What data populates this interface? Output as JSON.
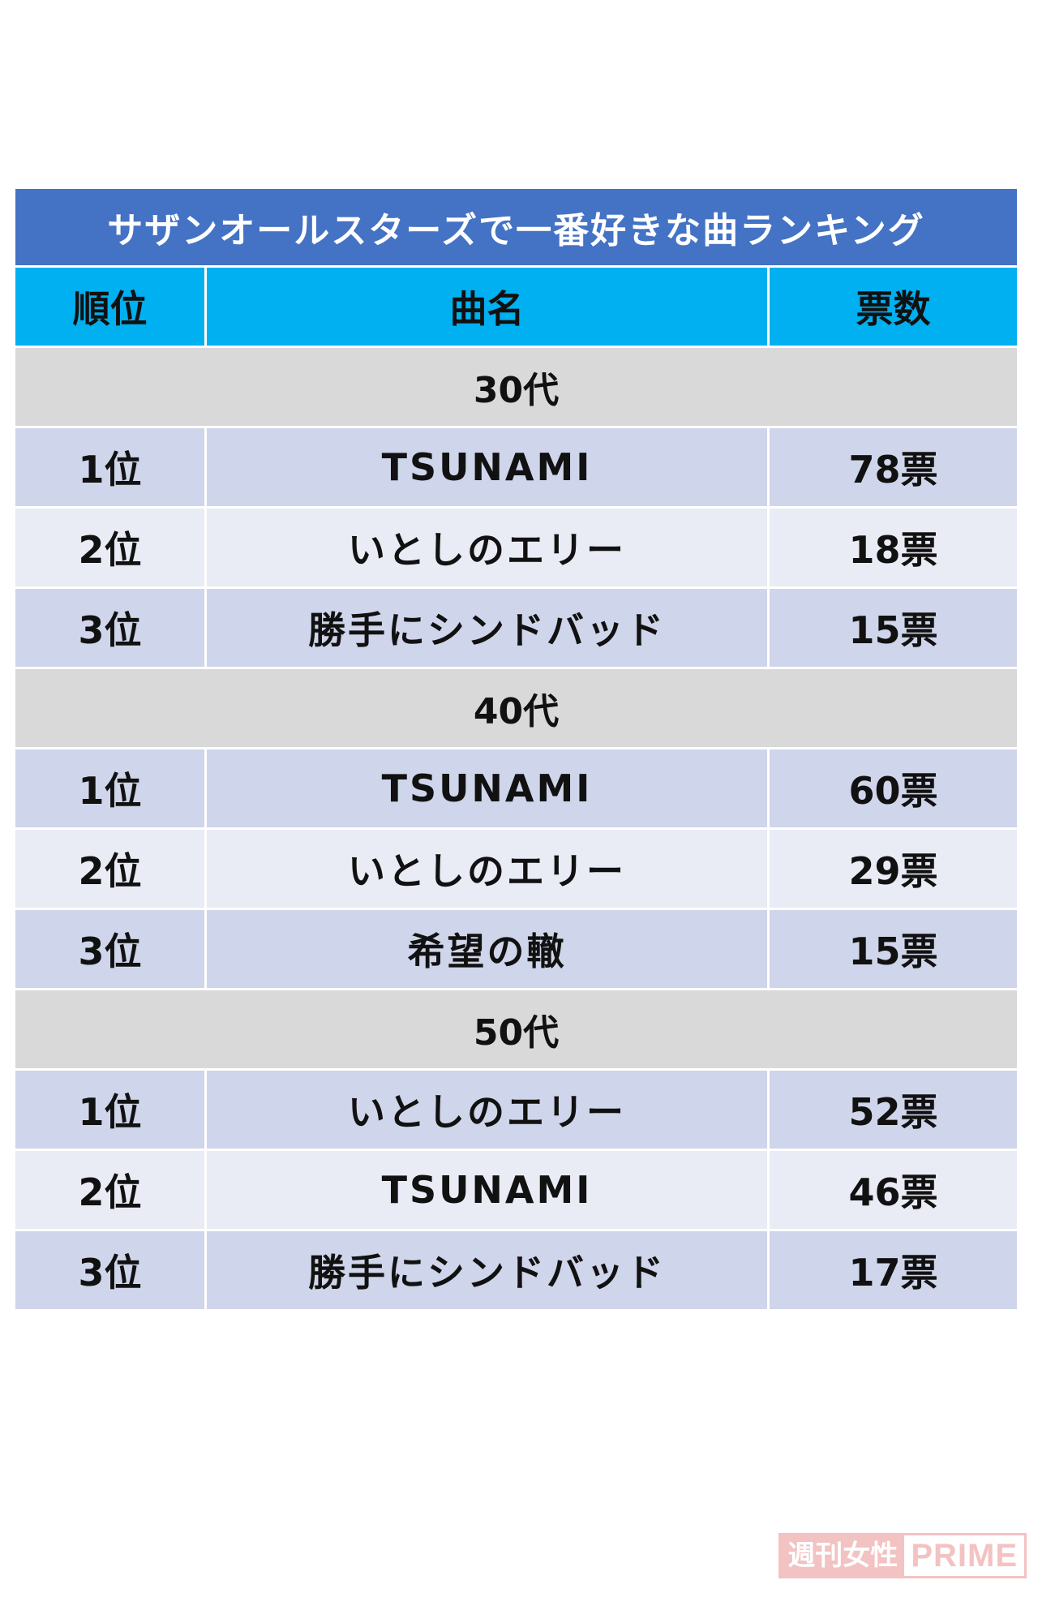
{
  "table": {
    "title": "サザンオールスターズで一番好きな曲ランキング",
    "headers": {
      "rank": "順位",
      "song": "曲名",
      "votes": "票数"
    },
    "groups": [
      {
        "age": "30代",
        "rows": [
          {
            "rank": "1位",
            "song": "TSUNAMI",
            "votes": "78票"
          },
          {
            "rank": "2位",
            "song": "いとしのエリー",
            "votes": "18票"
          },
          {
            "rank": "3位",
            "song": "勝手にシンドバッド",
            "votes": "15票"
          }
        ]
      },
      {
        "age": "40代",
        "rows": [
          {
            "rank": "1位",
            "song": "TSUNAMI",
            "votes": "60票"
          },
          {
            "rank": "2位",
            "song": "いとしのエリー",
            "votes": "29票"
          },
          {
            "rank": "3位",
            "song": "希望の轍",
            "votes": "15票"
          }
        ]
      },
      {
        "age": "50代",
        "rows": [
          {
            "rank": "1位",
            "song": "いとしのエリー",
            "votes": "52票"
          },
          {
            "rank": "2位",
            "song": "TSUNAMI",
            "votes": "46票"
          },
          {
            "rank": "3位",
            "song": "勝手にシンドバッド",
            "votes": "17票"
          }
        ]
      }
    ]
  },
  "watermark": {
    "jp": "週刊女性",
    "en": "PRIME"
  },
  "colors": {
    "title_bg": "#4472c4",
    "header_bg": "#00b0f0",
    "age_bg": "#d9d9d9",
    "row_odd_bg": "#cfd5ea",
    "row_even_bg": "#e9ebf5",
    "watermark": "#f2b8b8"
  }
}
